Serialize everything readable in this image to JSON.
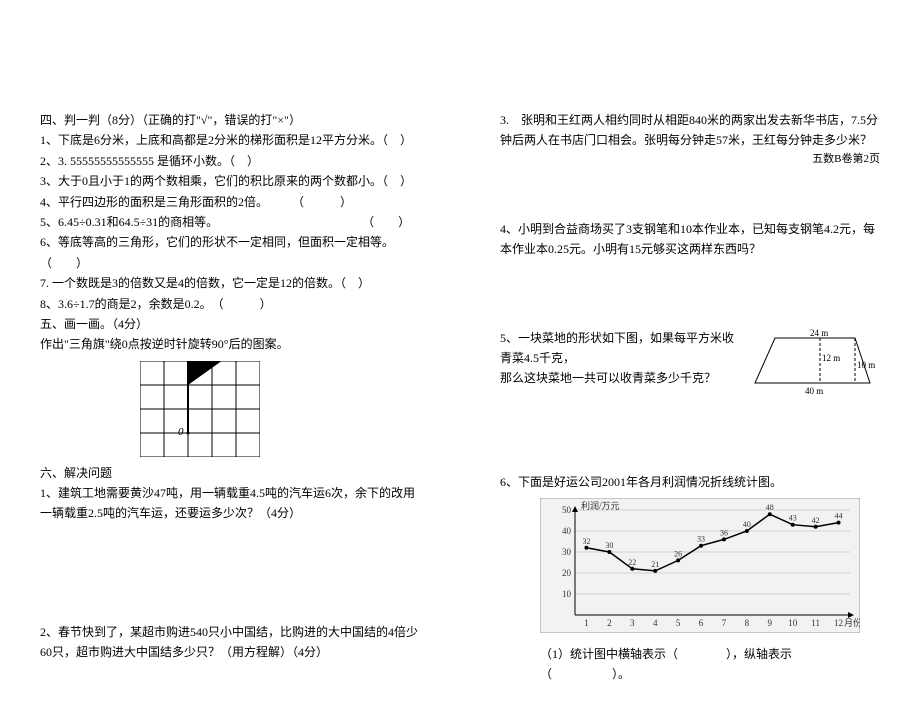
{
  "left": {
    "section4_title": "四、判一判（8分）（正确的打\"√\"，错误的打\"×\"）",
    "q4_1": "1、下底是6分米，上底和高都是2分米的梯形面积是12平方分米。（　）",
    "q4_2": "2、3. 55555555555555 是循环小数。（　）",
    "q4_3": "3、大于0且小于1的两个数相乘，它们的积比原来的两个数都小。（　）",
    "q4_4": "4、平行四边形的面积是三角形面积的2倍。　　　（　　　）",
    "q4_5": "5、6.45÷0.31和64.5÷31的商相等。　　　　　　　　　　　　　（　　）",
    "q4_6": "6、等底等高的三角形，它们的形状不一定相同，但面积一定相等。（　　）",
    "q4_7": "7. 一个数既是3的倍数又是4的倍数，它一定是12的倍数。（　）",
    "q4_8": "8、3.6÷1.7的商是2，余数是0.2。　（　　　）",
    "section5_title": "五、画一画。（4分）",
    "section5_prompt": "作出\"三角旗\"绕0点按逆时针旋转90°后的图案。",
    "section6_title": "六、解决问题",
    "q6_1": "1、建筑工地需要黄沙47吨，用一辆载重4.5吨的汽车运6次，余下的改用一辆载重2.5吨的汽车运，还要运多少次？（4分）",
    "q6_2": "2、春节快到了，某超市购进540只小中国结，比购进的大中国结的4倍少60只，超市购进大中国结多少只？（用方程解）（4分）",
    "grid": {
      "cell": 24,
      "cols": 5,
      "rows": 4,
      "stroke": "#000000",
      "fill": "#000000"
    }
  },
  "right": {
    "q3": "3.　张明和王红两人相约同时从相距840米的两家出发去新华书店，7.5分钟后两人在书店门口相会。张明每分钟走57米，王红每分钟走多少米？",
    "q4": "4、小明到合益商场买了3支钢笔和10本作业本，已知每支钢笔4.2元，每本作业本0.25元。小明有15元够买这两样东西吗？",
    "q5a": "5、一块菜地的形状如下图，如果每平方米收青菜4.5千克，",
    "q5b": "那么这块菜地一共可以收青菜多少千克？",
    "q6": "6、下面是好运公司2001年各月利润情况折线统计图。",
    "q6_sub": "（1）统计图中横轴表示（　　　　），纵轴表示（　　　　　）。",
    "page_label": "五数B卷第2页",
    "trapezoid": {
      "top_w": "24 m",
      "height": "12 m",
      "right_h": "10 m",
      "bottom_w": "40 m",
      "stroke": "#000000"
    },
    "chart": {
      "y_label": "利润/万元",
      "x_label": "月份",
      "y_ticks": [
        "10",
        "20",
        "30",
        "40",
        "50"
      ],
      "x_ticks": [
        "1",
        "2",
        "3",
        "4",
        "5",
        "6",
        "7",
        "8",
        "9",
        "10",
        "11",
        "12"
      ],
      "values": [
        32,
        30,
        22,
        21,
        26,
        33,
        36,
        40,
        48,
        43,
        42,
        44
      ],
      "line_color": "#000000",
      "grid_color": "#d0d0d0",
      "bg": "#f2f2f2",
      "text_color": "#333333"
    }
  }
}
